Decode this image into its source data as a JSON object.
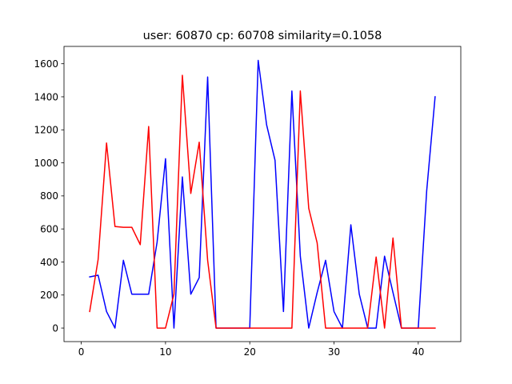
{
  "chart_data": {
    "type": "line",
    "title": "user: 60870  cp: 60708  similarity=0.1058",
    "xlabel": "",
    "ylabel": "",
    "xlim": [
      -2.05,
      45.05
    ],
    "ylim": [
      -82,
      1705
    ],
    "xticks": [
      0,
      10,
      20,
      30,
      40
    ],
    "yticks": [
      0,
      200,
      400,
      600,
      800,
      1000,
      1200,
      1400,
      1600
    ],
    "grid": false,
    "x": [
      1,
      2,
      3,
      4,
      5,
      6,
      7,
      8,
      9,
      10,
      11,
      12,
      13,
      14,
      15,
      16,
      17,
      18,
      19,
      20,
      21,
      22,
      23,
      24,
      25,
      26,
      27,
      28,
      29,
      30,
      31,
      32,
      33,
      34,
      35,
      36,
      37,
      38,
      39,
      40,
      41,
      42
    ],
    "series": [
      {
        "color": "#0000ff",
        "values": [
          310,
          320,
          100,
          0,
          410,
          205,
          205,
          205,
          520,
          1025,
          0,
          915,
          205,
          305,
          1520,
          0,
          0,
          0,
          0,
          0,
          1620,
          1230,
          1015,
          100,
          1435,
          435,
          0,
          215,
          410,
          100,
          0,
          625,
          205,
          0,
          0,
          435,
          215,
          0,
          0,
          0,
          830,
          1400
        ]
      },
      {
        "color": "#ff0000",
        "values": [
          100,
          415,
          1120,
          615,
          610,
          610,
          505,
          1220,
          0,
          0,
          205,
          1530,
          815,
          1125,
          410,
          0,
          0,
          0,
          0,
          0,
          0,
          0,
          0,
          0,
          0,
          1435,
          725,
          515,
          0,
          0,
          0,
          0,
          0,
          0,
          430,
          0,
          545,
          0,
          0,
          0,
          0,
          0
        ]
      }
    ]
  }
}
